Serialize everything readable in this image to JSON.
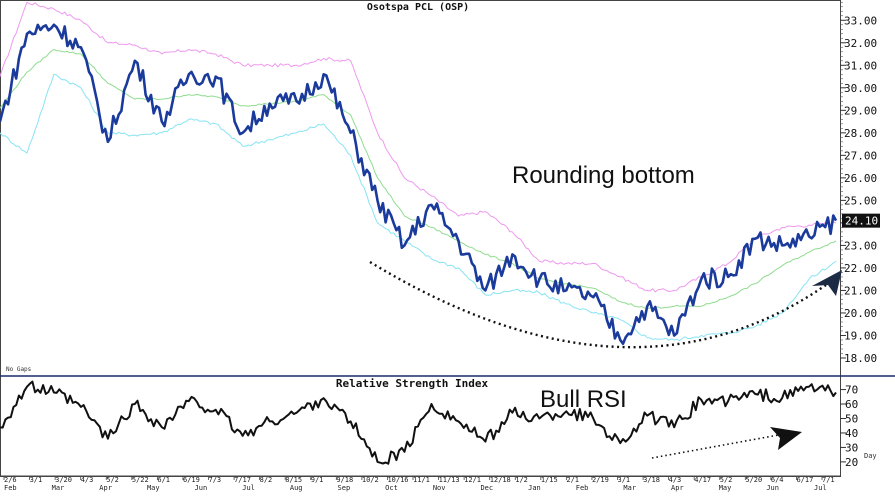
{
  "chart_data": [
    {
      "type": "line",
      "title": "Osotspa PCL (OSP)",
      "annotation": "Rounding bottom",
      "note": "No Gaps",
      "last_price_label": "24.10",
      "ylim": [
        17.2,
        33.9
      ],
      "yticks": [
        "33.00",
        "32.00",
        "31.00",
        "30.00",
        "29.00",
        "28.00",
        "27.00",
        "26.00",
        "25.00",
        "24.00",
        "23.00",
        "22.00",
        "21.00",
        "20.00",
        "19.00",
        "18.00"
      ],
      "x_tick_labels": [
        "2/6",
        "3/1",
        "3/20",
        "4/3",
        "5/2",
        "5/22",
        "6/1",
        "6/19",
        "7/3",
        "7/17",
        "8/2",
        "8/15",
        "9/1",
        "9/18",
        "10/2",
        "10/16",
        "11/1",
        "11/13",
        "12/1",
        "12/18",
        "1/2",
        "1/15",
        "2/1",
        "2/19",
        "3/1",
        "3/18",
        "4/3",
        "4/17",
        "5/2",
        "5/20",
        "6/4",
        "6/17",
        "7/1"
      ],
      "month_labels": [
        "Feb",
        "Mar",
        "Apr",
        "May",
        "Jun",
        "Jul",
        "Aug",
        "Sep",
        "Oct",
        "Nov",
        "Dec",
        "Jan",
        "Feb",
        "Mar",
        "Apr",
        "May",
        "Jun",
        "Jul"
      ],
      "x_unit_label": "Day",
      "colors": {
        "price": "#1a3a9c",
        "upper_band": "#ee99ee",
        "lower_band": "#88e4f4",
        "ma": "#8fdc8f",
        "annotation": "#111111"
      },
      "series": [
        {
          "key": "price",
          "values": [
            28.5,
            32.4,
            32.8,
            31.8,
            27.6,
            31.2,
            28.5,
            30.6,
            30.5,
            28.0,
            29.3,
            29.4,
            30.6,
            28.0,
            25.0,
            23.0,
            24.8,
            23.2,
            21.0,
            22.6,
            21.5,
            21.0,
            20.7,
            18.8,
            20.3,
            19.0,
            21.5,
            21.6,
            23.3,
            23.0,
            23.4,
            24.1
          ]
        },
        {
          "key": "upper_band",
          "values": [
            30.5,
            33.8,
            33.5,
            33.0,
            32.0,
            31.9,
            31.5,
            31.7,
            31.5,
            31.0,
            31.0,
            31.0,
            31.3,
            31.2,
            28.0,
            26.0,
            25.2,
            24.3,
            24.5,
            23.6,
            22.3,
            22.2,
            22.2,
            21.6,
            21.0,
            21.0,
            21.6,
            22.2,
            23.3,
            23.8,
            23.9,
            24.0
          ]
        },
        {
          "key": "lower_band",
          "values": [
            28.0,
            27.1,
            30.6,
            30.0,
            28.0,
            27.9,
            28.0,
            28.6,
            28.4,
            27.4,
            27.7,
            28.0,
            28.4,
            27.0,
            24.0,
            23.2,
            22.4,
            22.0,
            20.8,
            21.0,
            20.9,
            20.4,
            20.0,
            19.7,
            18.9,
            18.8,
            19.0,
            19.1,
            19.4,
            20.0,
            21.5,
            22.3
          ]
        },
        {
          "key": "ma",
          "values": [
            29.1,
            30.7,
            31.7,
            31.5,
            30.2,
            29.5,
            29.5,
            29.7,
            29.6,
            29.2,
            29.3,
            29.4,
            29.7,
            28.8,
            26.0,
            24.3,
            23.8,
            23.2,
            22.6,
            22.2,
            21.5,
            21.3,
            21.1,
            20.5,
            20.2,
            20.3,
            20.3,
            20.7,
            21.3,
            22.1,
            22.7,
            23.2
          ]
        }
      ]
    },
    {
      "type": "line",
      "title": "Relative Strength Index",
      "annotation": "Bull RSI",
      "ylim": [
        13,
        78
      ],
      "yticks": [
        "70",
        "60",
        "50",
        "40",
        "30",
        "20"
      ],
      "series": [
        {
          "key": "rsi",
          "values": [
            44,
            72,
            68,
            58,
            36,
            60,
            44,
            62,
            56,
            38,
            48,
            54,
            64,
            48,
            20,
            27,
            60,
            48,
            34,
            54,
            50,
            55,
            50,
            33,
            52,
            44,
            63,
            62,
            67,
            64,
            72,
            68
          ]
        }
      ]
    }
  ]
}
